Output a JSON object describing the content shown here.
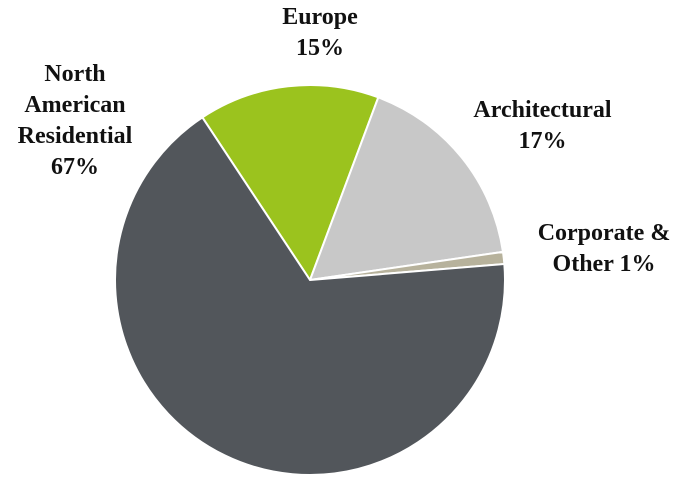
{
  "chart_data": {
    "type": "pie",
    "categories": [
      "Europe",
      "Architectural",
      "Corporate & Other",
      "North American Residential"
    ],
    "values": [
      15,
      17,
      1,
      67
    ],
    "value_labels": [
      "15%",
      "17%",
      "1%",
      "67%"
    ],
    "colors": [
      "#9bc31e",
      "#c8c8c8",
      "#b7b29c",
      "#52565b"
    ]
  }
}
